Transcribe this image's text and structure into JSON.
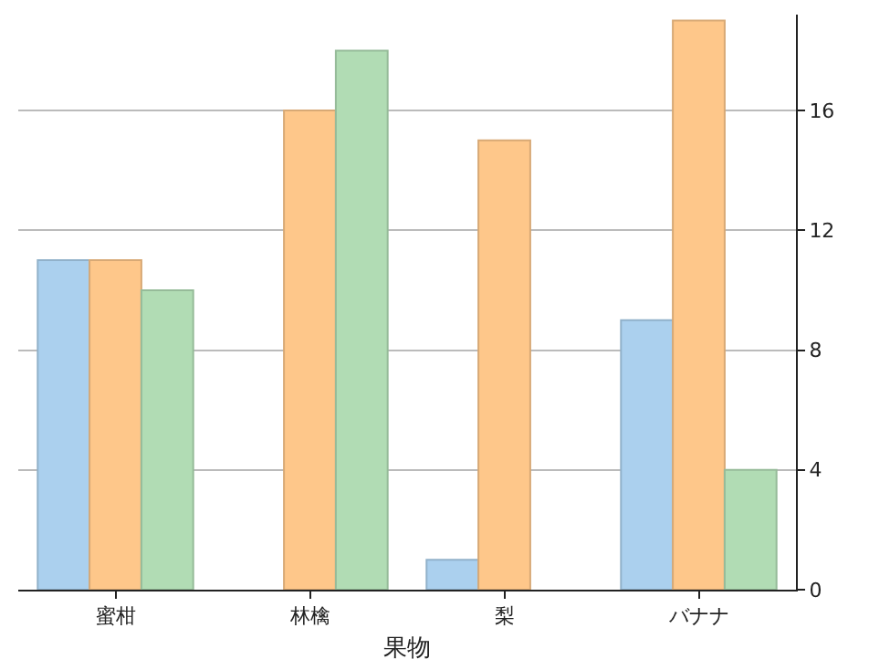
{
  "chart_data": {
    "type": "bar",
    "xlabel": "果物",
    "categories": [
      "蜜柑",
      "林檎",
      "梨",
      "バナナ"
    ],
    "series": [
      {
        "color": "#abd0ee",
        "values": [
          11,
          null,
          1,
          9
        ]
      },
      {
        "color": "#fec78a",
        "values": [
          11,
          16,
          15,
          19
        ]
      },
      {
        "color": "#b1dcb4",
        "values": [
          10,
          18,
          null,
          4
        ]
      }
    ],
    "ylim": [
      0,
      19.2
    ],
    "yticks": [
      0,
      4,
      8,
      12,
      16
    ],
    "grid": "y"
  }
}
